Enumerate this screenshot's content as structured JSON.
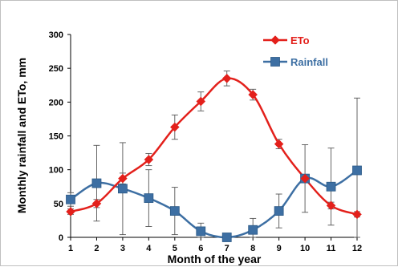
{
  "chart_data": {
    "type": "line",
    "title": "",
    "xlabel": "Month of the year",
    "ylabel": "Monthly rainfall and ETo, mm",
    "x": [
      1,
      2,
      3,
      4,
      5,
      6,
      7,
      8,
      9,
      10,
      11,
      12
    ],
    "xlim": [
      1,
      12
    ],
    "ylim": [
      0,
      300
    ],
    "yticks": [
      0,
      50,
      100,
      150,
      200,
      250,
      300
    ],
    "grid": false,
    "legend_position": "top-right",
    "series": [
      {
        "name": "ETo",
        "color": "#e3201b",
        "marker": "diamond",
        "smooth": true,
        "values": [
          38,
          50,
          87,
          115,
          163,
          201,
          235,
          211,
          138,
          87,
          47,
          34
        ],
        "error": [
          4,
          6,
          8,
          9,
          18,
          14,
          11,
          8,
          7,
          5,
          5,
          4
        ]
      },
      {
        "name": "Rainfall",
        "color": "#3d6fa3",
        "marker": "square",
        "smooth": true,
        "values": [
          56,
          80,
          72,
          58,
          39,
          9,
          0,
          11,
          39,
          87,
          75,
          99
        ],
        "error": [
          10,
          56,
          68,
          42,
          35,
          12,
          0,
          17,
          25,
          50,
          57,
          107
        ]
      }
    ]
  }
}
